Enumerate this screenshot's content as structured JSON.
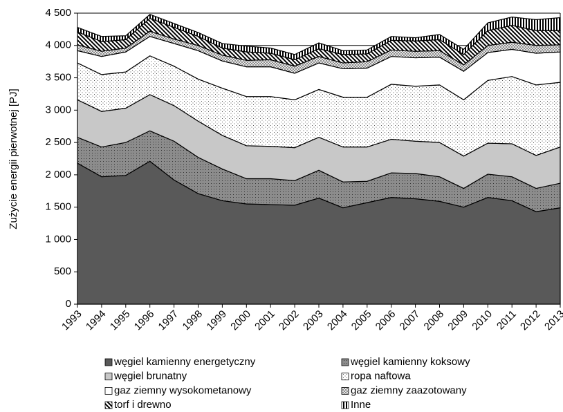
{
  "chart_data": {
    "type": "stacked_area",
    "y_label": "Zużycie energii pierwotnej [PJ]",
    "categories": [
      "1993",
      "1994",
      "1995",
      "1996",
      "1997",
      "1998",
      "1999",
      "2000",
      "2001",
      "2002",
      "2003",
      "2004",
      "2005",
      "2006",
      "2007",
      "2008",
      "2009",
      "2010",
      "2011",
      "2012",
      "2013"
    ],
    "series": [
      {
        "name": "węgiel kamienny energetyczny",
        "color": "#595959",
        "values": [
          2180,
          1970,
          1990,
          2210,
          1920,
          1710,
          1600,
          1550,
          1540,
          1530,
          1640,
          1490,
          1570,
          1650,
          1630,
          1590,
          1500,
          1650,
          1600,
          1430,
          1490
        ]
      },
      {
        "name": "węgiel kamienny koksowy",
        "color": "#8c8c8c",
        "values": [
          400,
          460,
          510,
          470,
          600,
          560,
          490,
          390,
          400,
          380,
          430,
          400,
          330,
          380,
          390,
          380,
          290,
          360,
          370,
          360,
          380
        ]
      },
      {
        "name": "węgiel brunatny",
        "color": "#c8c8c8",
        "values": [
          580,
          550,
          530,
          560,
          550,
          560,
          520,
          510,
          500,
          510,
          510,
          540,
          530,
          520,
          500,
          530,
          500,
          480,
          510,
          510,
          560
        ]
      },
      {
        "name": "ropa naftowa",
        "color": "#e6e6e6",
        "values": [
          570,
          570,
          560,
          600,
          610,
          650,
          730,
          760,
          770,
          740,
          740,
          770,
          770,
          850,
          850,
          890,
          870,
          970,
          1040,
          1090,
          1000
        ]
      },
      {
        "name": "gaz ziemny wysokometanowy",
        "color": "#ffffff",
        "values": [
          190,
          280,
          310,
          300,
          350,
          440,
          420,
          460,
          460,
          410,
          410,
          440,
          450,
          430,
          440,
          430,
          440,
          430,
          420,
          490,
          470
        ]
      },
      {
        "name": "gaz ziemny zaazotowany",
        "color": "#a6a6a6",
        "values": [
          90,
          80,
          60,
          80,
          70,
          80,
          90,
          100,
          110,
          110,
          100,
          90,
          100,
          100,
          100,
          100,
          100,
          110,
          110,
          120,
          110
        ]
      },
      {
        "name": "torf i drewno",
        "color": "#000000",
        "values": [
          200,
          150,
          130,
          200,
          180,
          140,
          110,
          130,
          100,
          100,
          120,
          130,
          120,
          150,
          160,
          170,
          160,
          230,
          260,
          230,
          220
        ]
      },
      {
        "name": "Inne",
        "color": "#1a1a1a",
        "values": [
          70,
          80,
          60,
          60,
          60,
          60,
          70,
          90,
          80,
          80,
          90,
          60,
          60,
          60,
          50,
          80,
          80,
          120,
          130,
          170,
          200
        ]
      }
    ],
    "ylim": [
      0,
      4500
    ],
    "yticks": [
      0,
      500,
      {
        "value": 1000,
        "label": "1 000"
      },
      {
        "value": 1500,
        "label": "1 500"
      },
      {
        "value": 2000,
        "label": "2 000"
      },
      {
        "value": 2500,
        "label": "2 500"
      },
      {
        "value": 3000,
        "label": "3 000"
      },
      {
        "value": 3500,
        "label": "3 500"
      },
      {
        "value": 4000,
        "label": "4 000"
      },
      {
        "value": 4500,
        "label": "4 500"
      }
    ],
    "grid": true
  }
}
